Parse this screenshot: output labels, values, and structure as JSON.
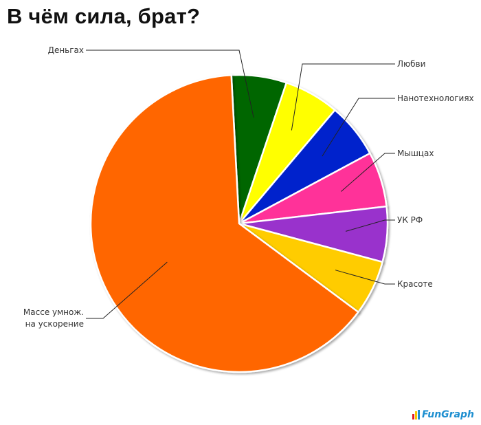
{
  "chart_data": {
    "type": "pie",
    "title": "В чём сила, брат?",
    "exploded_slice": "Масса умнож. на ускорение",
    "slices": [
      {
        "label": "Деньгах",
        "value": 6,
        "color": "#006600"
      },
      {
        "label": "Любви",
        "value": 6,
        "color": "#ffff00"
      },
      {
        "label": "Нанотехнологиях",
        "value": 6,
        "color": "#0022cc"
      },
      {
        "label": "Мышцах",
        "value": 6,
        "color": "#ff3399"
      },
      {
        "label": "УК РФ",
        "value": 6,
        "color": "#9933cc"
      },
      {
        "label": "Красоте",
        "value": 6,
        "color": "#ffcc00"
      },
      {
        "label": "Массе умнож.\nна ускорение",
        "value": 64,
        "color": "#ff6600"
      }
    ]
  },
  "branding": {
    "name": "FunGraph",
    "icon_colors": [
      "#e31b23",
      "#f7c600",
      "#1e8fd0"
    ]
  }
}
